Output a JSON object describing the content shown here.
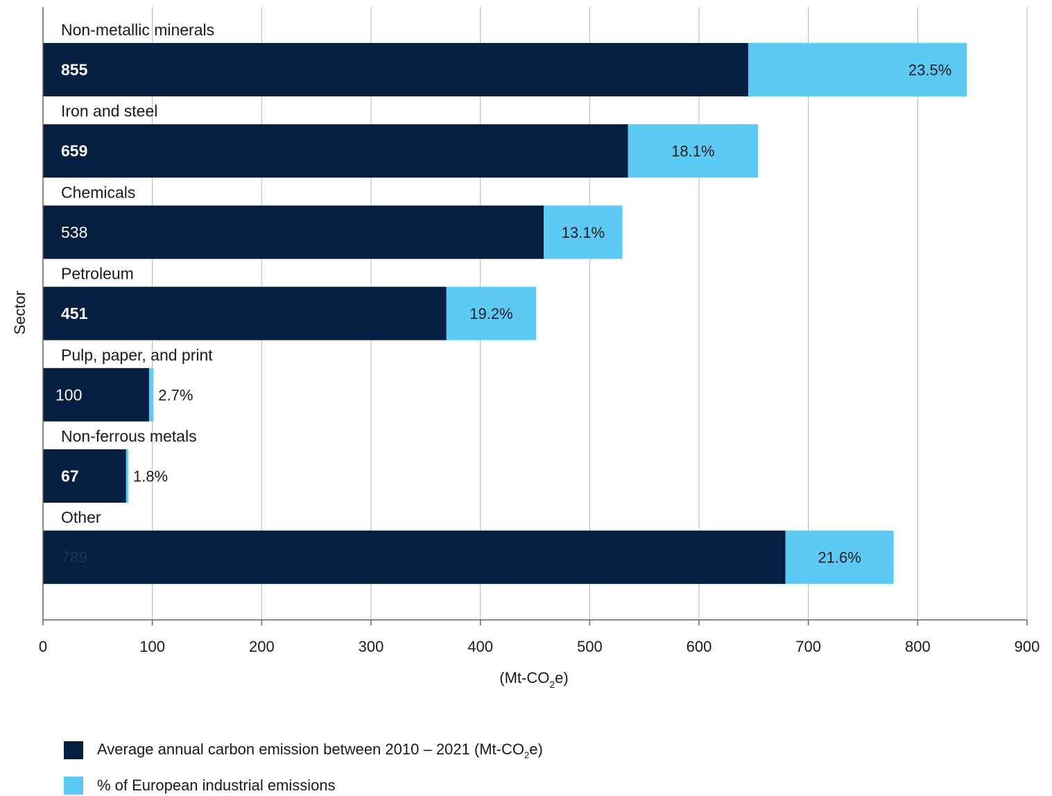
{
  "chart_data": {
    "type": "bar",
    "orientation": "horizontal",
    "stacked": true,
    "categories": [
      "Non-metallic minerals",
      "Iron and steel",
      "Chemicals",
      "Petroleum",
      "Pulp, paper, and print",
      "Non-ferrous metals",
      "Other"
    ],
    "series": [
      {
        "name": "Average annual carbon emission between 2010 – 2021 (Mt-CO2e)",
        "color": "#061e41",
        "values": [
          855,
          659,
          538,
          451,
          100,
          67,
          789
        ],
        "labels": [
          "855",
          "659",
          "538",
          "451",
          "100",
          "67",
          "789"
        ]
      },
      {
        "name": "% of European industrial emissions",
        "color": "#5bcbf5",
        "values": [
          23.5,
          18.1,
          13.1,
          19.2,
          2.7,
          1.8,
          21.6
        ],
        "labels": [
          "23.5%",
          "18.1%",
          "13.1%",
          "19.2%",
          "2.7%",
          "1.8%",
          "21.6%"
        ]
      }
    ],
    "bar_extents": [
      {
        "dark_end": 645,
        "total_end": 845
      },
      {
        "dark_end": 535,
        "total_end": 654
      },
      {
        "dark_end": 458,
        "total_end": 530
      },
      {
        "dark_end": 369,
        "total_end": 451
      },
      {
        "dark_end": 97,
        "total_end": 101
      },
      {
        "dark_end": 76,
        "total_end": 78
      },
      {
        "dark_end": 679,
        "total_end": 778
      }
    ],
    "xlabel": "(Mt-CO2e)",
    "ylabel": "Sector",
    "xlim": [
      0,
      900
    ],
    "xticks": [
      0,
      100,
      200,
      300,
      400,
      500,
      600,
      700,
      800,
      900
    ],
    "grid": true,
    "legend_position": "bottom-left"
  }
}
